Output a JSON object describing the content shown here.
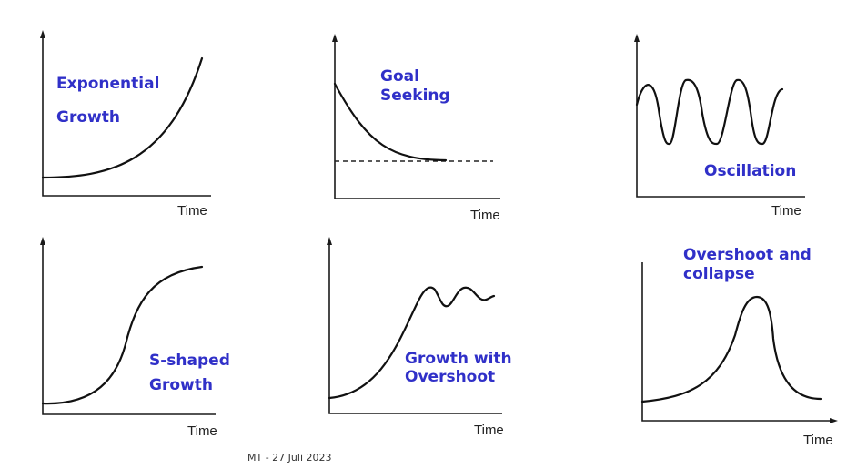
{
  "panels": [
    {
      "id": "exponential",
      "title_lines": [
        "Exponential",
        "Growth"
      ],
      "axis_label": "Time"
    },
    {
      "id": "goal-seeking",
      "title_lines": [
        "Goal",
        "Seeking"
      ],
      "axis_label": "Time"
    },
    {
      "id": "oscillation",
      "title_lines": [
        "Oscillation"
      ],
      "axis_label": "Time"
    },
    {
      "id": "s-shaped",
      "title_lines": [
        "S-shaped",
        "Growth"
      ],
      "axis_label": "Time"
    },
    {
      "id": "growth-overshoot",
      "title_lines": [
        "Growth with",
        "Overshoot"
      ],
      "axis_label": "Time"
    },
    {
      "id": "overshoot-collapse",
      "title_lines": [
        "Overshoot and",
        "collapse"
      ],
      "axis_label": "Time"
    }
  ],
  "footer": "MT - 27 Juli 2023",
  "colors": {
    "label": "#3030c8",
    "curve": "#111111"
  }
}
